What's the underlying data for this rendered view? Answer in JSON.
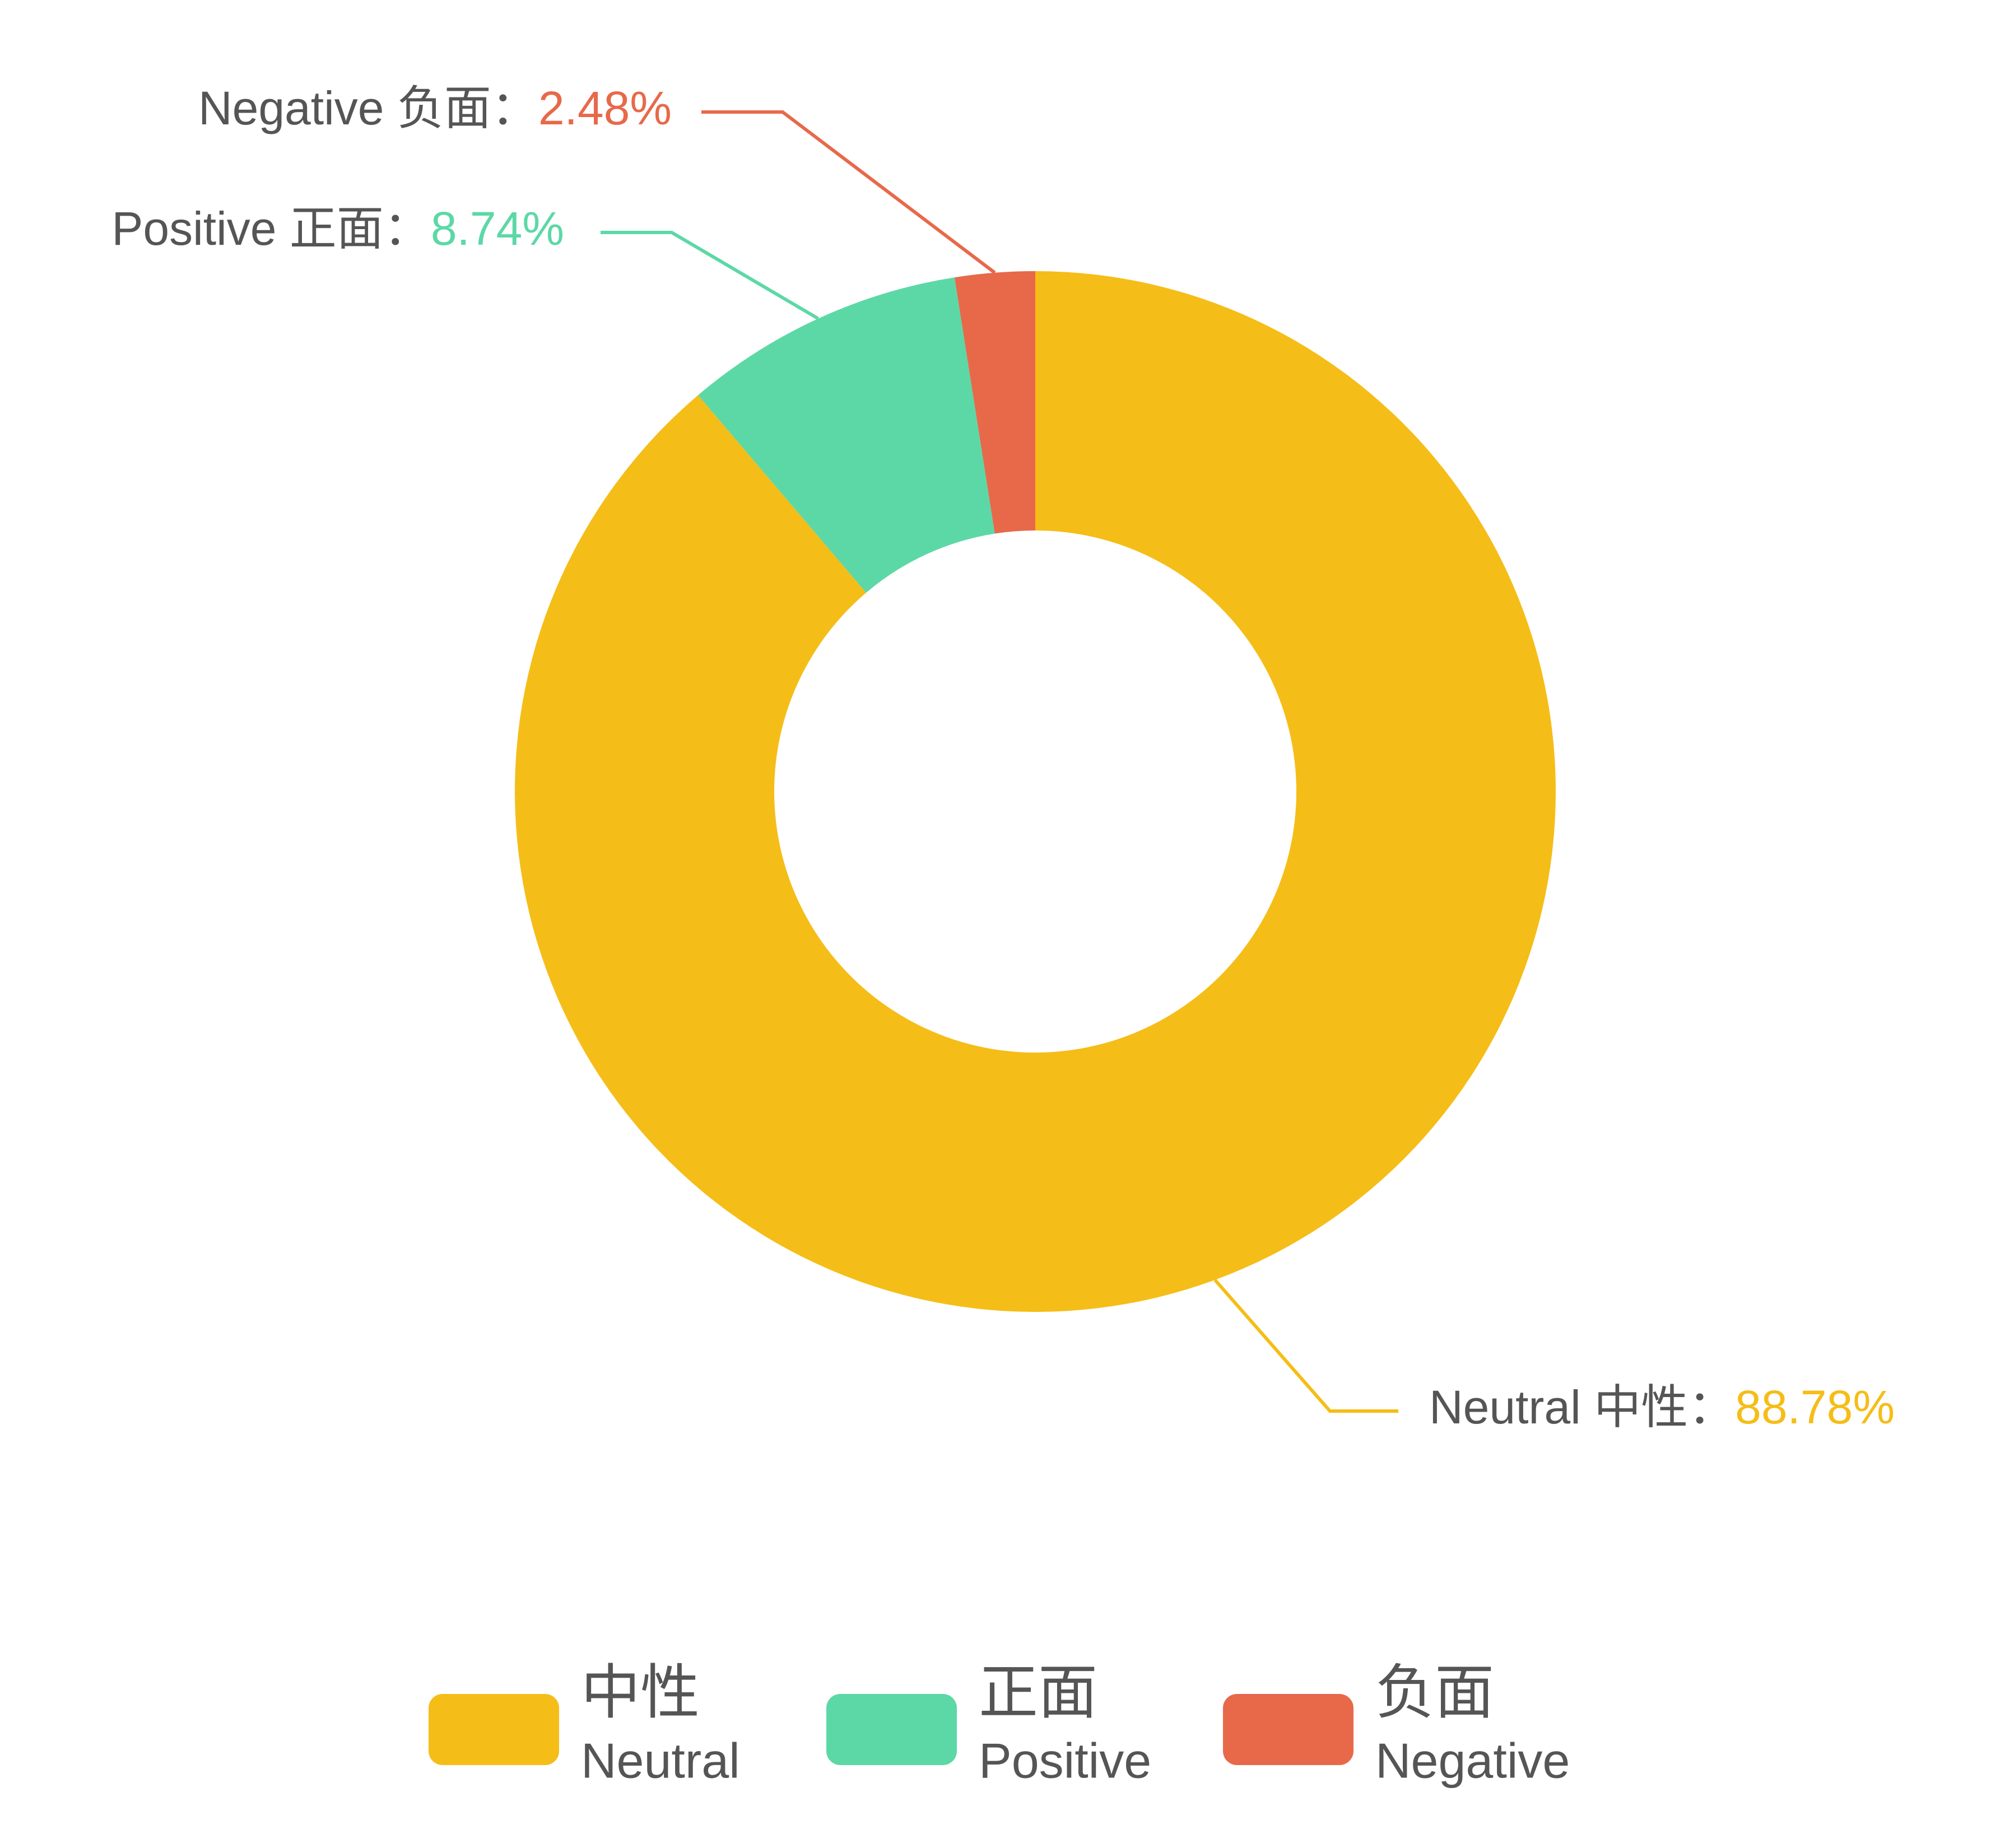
{
  "chart_data": {
    "type": "pie",
    "categories": [
      "中性",
      "正面",
      "负面"
    ],
    "categories_en": [
      "Neutral",
      "Positive",
      "Negative"
    ],
    "callout_labels": [
      "Neutral 中性：",
      "Positive 正面：",
      "Negative 负面："
    ],
    "values": [
      88.78,
      8.74,
      2.48
    ],
    "value_labels": [
      "88.78%",
      "8.74%",
      "2.48%"
    ],
    "colors": [
      "#f5bd17",
      "#5cd8a6",
      "#e7694a"
    ],
    "donut": true,
    "legend": "bottom"
  }
}
